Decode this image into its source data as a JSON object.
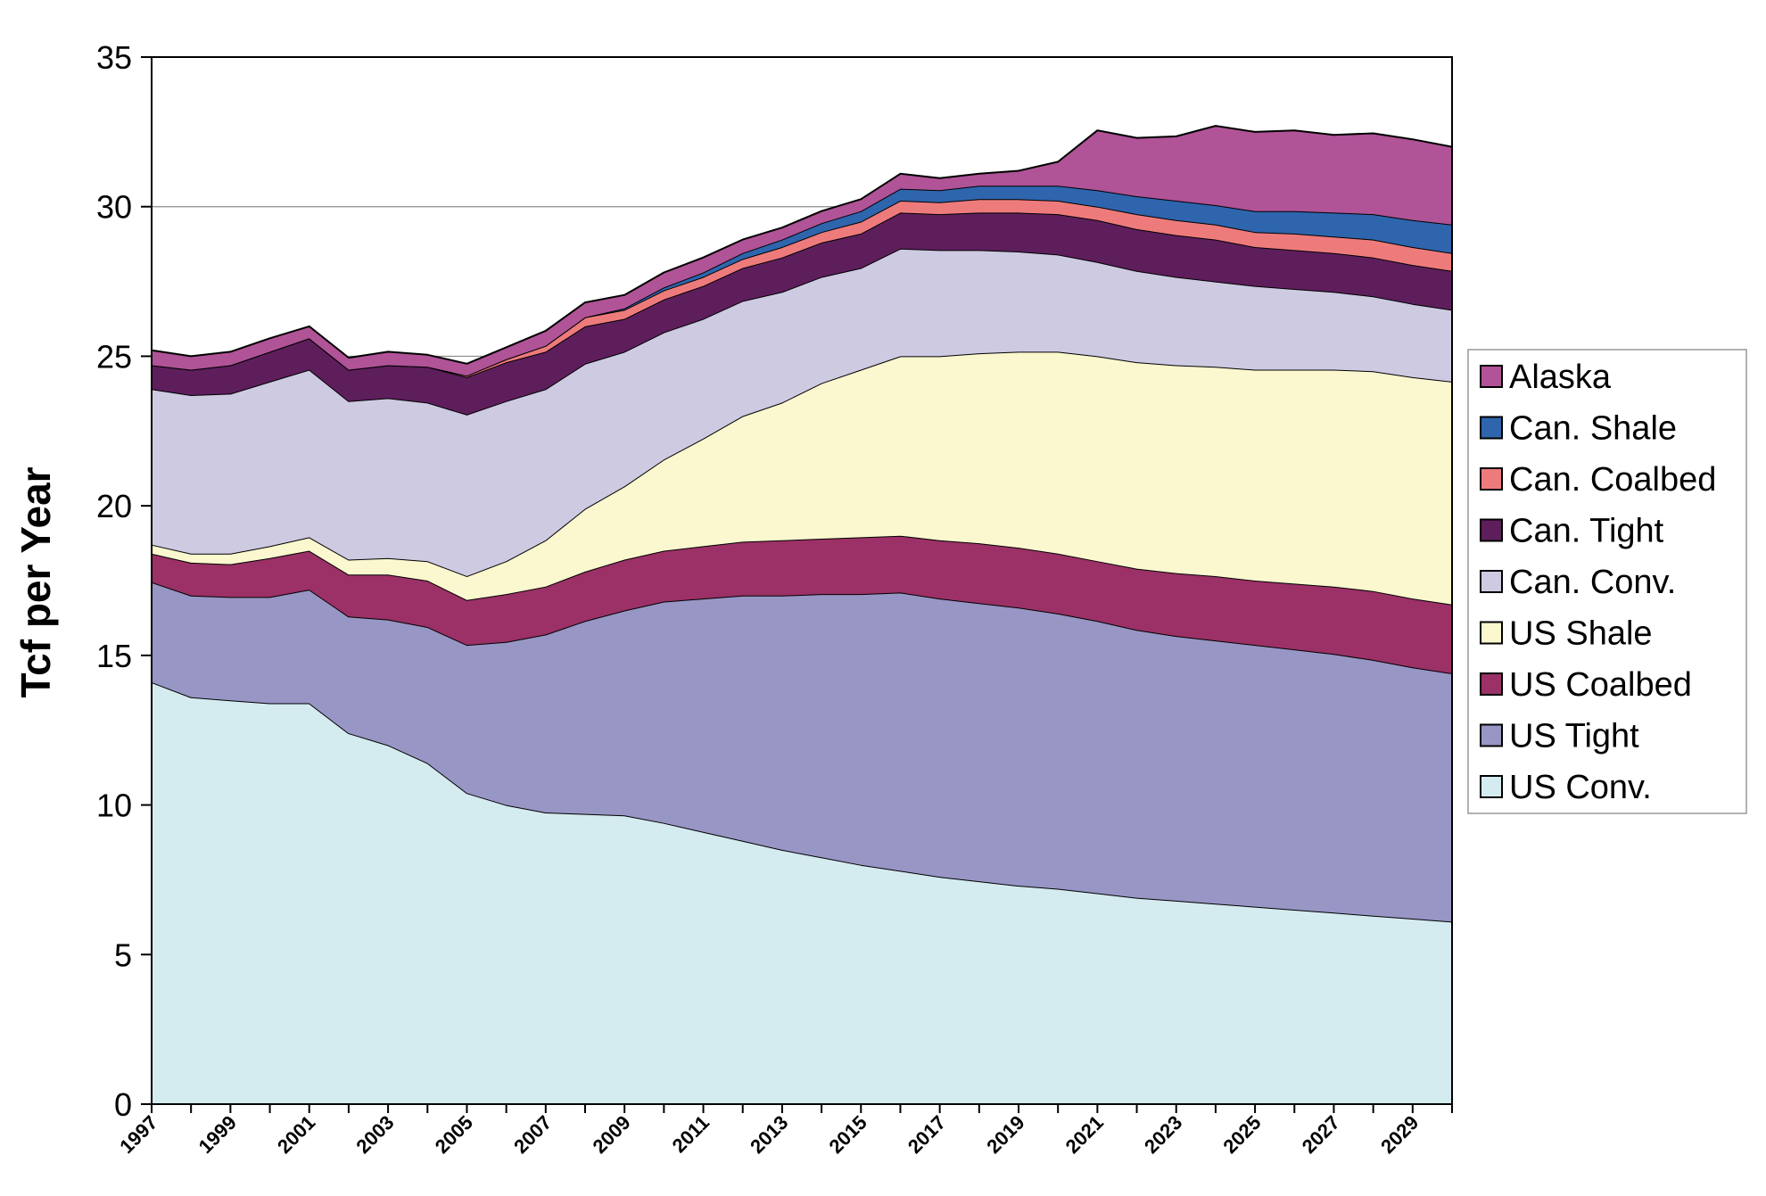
{
  "chart_data": {
    "type": "area",
    "stacked": true,
    "title": "",
    "xlabel": "",
    "ylabel": "Tcf per Year",
    "ylim": [
      0,
      35
    ],
    "yticks": [
      0,
      5,
      10,
      15,
      20,
      25,
      30,
      35
    ],
    "grid": "horizontal",
    "legend_position": "right",
    "x": [
      1997,
      1998,
      1999,
      2000,
      2001,
      2002,
      2003,
      2004,
      2005,
      2006,
      2007,
      2008,
      2009,
      2010,
      2011,
      2012,
      2013,
      2014,
      2015,
      2016,
      2017,
      2018,
      2019,
      2020,
      2021,
      2022,
      2023,
      2024,
      2025,
      2026,
      2027,
      2028,
      2029,
      2030
    ],
    "x_tick_labels": [
      "1997",
      "1999",
      "2001",
      "2003",
      "2005",
      "2007",
      "2009",
      "2011",
      "2013",
      "2015",
      "2017",
      "2019",
      "2021",
      "2023",
      "2025",
      "2027",
      "2029"
    ],
    "series": [
      {
        "name": "US Conv.",
        "color": "#d4ebf0",
        "values": [
          14.1,
          13.6,
          13.5,
          13.4,
          13.4,
          12.4,
          12.0,
          11.4,
          10.4,
          10.0,
          9.75,
          9.7,
          9.65,
          9.4,
          9.1,
          8.8,
          8.5,
          8.25,
          8.0,
          7.8,
          7.6,
          7.45,
          7.3,
          7.2,
          7.05,
          6.9,
          6.8,
          6.7,
          6.6,
          6.5,
          6.4,
          6.3,
          6.2,
          6.1
        ]
      },
      {
        "name": "US Tight",
        "color": "#9896c5",
        "values": [
          3.35,
          3.4,
          3.45,
          3.55,
          3.8,
          3.9,
          4.2,
          4.55,
          4.95,
          5.45,
          5.95,
          6.45,
          6.85,
          7.4,
          7.8,
          8.2,
          8.5,
          8.8,
          9.05,
          9.3,
          9.3,
          9.3,
          9.3,
          9.2,
          9.1,
          8.95,
          8.85,
          8.8,
          8.75,
          8.7,
          8.65,
          8.55,
          8.4,
          8.3
        ]
      },
      {
        "name": "US Coalbed",
        "color": "#9b3166",
        "values": [
          0.95,
          1.1,
          1.1,
          1.3,
          1.3,
          1.4,
          1.5,
          1.55,
          1.5,
          1.6,
          1.6,
          1.65,
          1.7,
          1.7,
          1.75,
          1.8,
          1.85,
          1.85,
          1.9,
          1.9,
          1.95,
          2.0,
          2.0,
          2.0,
          2.0,
          2.05,
          2.1,
          2.15,
          2.15,
          2.2,
          2.25,
          2.3,
          2.3,
          2.3
        ]
      },
      {
        "name": "US Shale",
        "color": "#fbf7cf",
        "values": [
          0.3,
          0.3,
          0.35,
          0.4,
          0.45,
          0.5,
          0.55,
          0.65,
          0.8,
          1.1,
          1.55,
          2.1,
          2.45,
          3.05,
          3.6,
          4.2,
          4.6,
          5.2,
          5.6,
          6.0,
          6.15,
          6.35,
          6.55,
          6.75,
          6.85,
          6.9,
          6.95,
          7.0,
          7.05,
          7.15,
          7.25,
          7.35,
          7.4,
          7.45
        ]
      },
      {
        "name": "Can. Conv.",
        "color": "#cdcae2",
        "values": [
          5.2,
          5.3,
          5.35,
          5.5,
          5.6,
          5.3,
          5.35,
          5.3,
          5.4,
          5.35,
          5.05,
          4.85,
          4.5,
          4.25,
          4.0,
          3.85,
          3.7,
          3.55,
          3.4,
          3.6,
          3.55,
          3.45,
          3.35,
          3.25,
          3.15,
          3.05,
          2.95,
          2.85,
          2.8,
          2.7,
          2.6,
          2.5,
          2.45,
          2.4
        ]
      },
      {
        "name": "Can. Tight",
        "color": "#5e1e5c",
        "values": [
          0.8,
          0.85,
          0.95,
          1.0,
          1.05,
          1.05,
          1.1,
          1.2,
          1.25,
          1.3,
          1.25,
          1.25,
          1.1,
          1.1,
          1.1,
          1.1,
          1.15,
          1.15,
          1.15,
          1.2,
          1.2,
          1.25,
          1.3,
          1.35,
          1.4,
          1.4,
          1.4,
          1.4,
          1.3,
          1.3,
          1.3,
          1.3,
          1.3,
          1.3
        ]
      },
      {
        "name": "Can. Coalbed",
        "color": "#ee7b7c",
        "values": [
          0.0,
          0.0,
          0.0,
          0.0,
          0.0,
          0.0,
          0.0,
          0.0,
          0.05,
          0.1,
          0.2,
          0.3,
          0.3,
          0.3,
          0.3,
          0.3,
          0.35,
          0.35,
          0.4,
          0.4,
          0.4,
          0.45,
          0.45,
          0.45,
          0.45,
          0.5,
          0.5,
          0.5,
          0.5,
          0.55,
          0.55,
          0.6,
          0.6,
          0.6
        ]
      },
      {
        "name": "Can. Shale",
        "color": "#2e65ad",
        "values": [
          0.0,
          0.0,
          0.0,
          0.0,
          0.0,
          0.0,
          0.0,
          0.0,
          0.0,
          0.0,
          0.0,
          0.0,
          0.05,
          0.1,
          0.15,
          0.2,
          0.25,
          0.3,
          0.35,
          0.4,
          0.4,
          0.45,
          0.45,
          0.5,
          0.55,
          0.6,
          0.65,
          0.65,
          0.7,
          0.75,
          0.8,
          0.85,
          0.9,
          0.95
        ]
      },
      {
        "name": "Alaska",
        "color": "#b05397",
        "values": [
          0.5,
          0.45,
          0.45,
          0.45,
          0.4,
          0.4,
          0.45,
          0.4,
          0.4,
          0.4,
          0.5,
          0.5,
          0.45,
          0.5,
          0.5,
          0.45,
          0.4,
          0.4,
          0.4,
          0.5,
          0.4,
          0.4,
          0.5,
          0.8,
          2.0,
          1.95,
          2.15,
          2.65,
          2.65,
          2.7,
          2.6,
          2.7,
          2.7,
          2.6
        ]
      }
    ]
  }
}
